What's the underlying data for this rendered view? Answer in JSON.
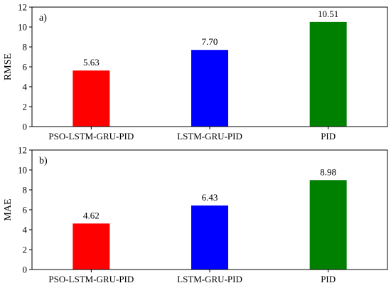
{
  "chart_data": [
    {
      "type": "bar",
      "panel_label": "a)",
      "ylabel": "RMSE",
      "categories": [
        "PSO-LSTM-GRU-PID",
        "LSTM-GRU-PID",
        "PID"
      ],
      "values": [
        5.63,
        7.7,
        10.51
      ],
      "value_labels": [
        "5.63",
        "7.70",
        "10.51"
      ],
      "colors": [
        "#ff0000",
        "#0000ff",
        "#008000"
      ],
      "ylim": [
        0,
        12
      ],
      "yticks": [
        0,
        2,
        4,
        6,
        8,
        10,
        12
      ],
      "grid": false
    },
    {
      "type": "bar",
      "panel_label": "b)",
      "ylabel": "MAE",
      "categories": [
        "PSO-LSTM-GRU-PID",
        "LSTM-GRU-PID",
        "PID"
      ],
      "values": [
        4.62,
        6.43,
        8.98
      ],
      "value_labels": [
        "4.62",
        "6.43",
        "8.98"
      ],
      "colors": [
        "#ff0000",
        "#0000ff",
        "#008000"
      ],
      "ylim": [
        0,
        12
      ],
      "yticks": [
        0,
        2,
        4,
        6,
        8,
        10,
        12
      ],
      "grid": false
    }
  ]
}
